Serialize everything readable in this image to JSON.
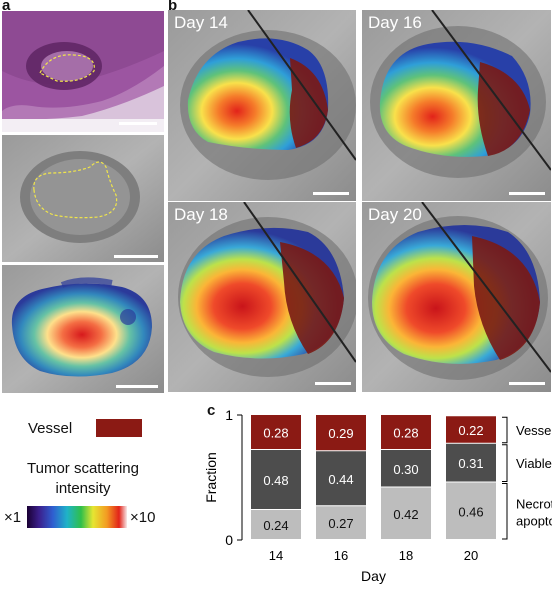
{
  "panels": {
    "a": "a",
    "b": "b",
    "c": "c"
  },
  "days": [
    "Day 14",
    "Day 16",
    "Day 18",
    "Day 20"
  ],
  "legend": {
    "vessel_label": "Vessel",
    "vessel_color": "#8b1a14",
    "scatter_title_line1": "Tumor scattering",
    "scatter_title_line2": "intensity",
    "cbar_min": "×1",
    "cbar_max": "×10"
  },
  "chart_data": {
    "type": "bar",
    "stacked": true,
    "categories": [
      "14",
      "16",
      "18",
      "20"
    ],
    "xlabel": "Day",
    "ylabel": "Fraction",
    "ylim": [
      0,
      1
    ],
    "yticks": [
      "0",
      "1"
    ],
    "series": [
      {
        "name": "Necrotic/ apoptotic",
        "values": [
          0.24,
          0.27,
          0.42,
          0.46
        ],
        "color": "#bdbdbd",
        "label_color": "#111111"
      },
      {
        "name": "Viable",
        "values": [
          0.48,
          0.44,
          0.3,
          0.31
        ],
        "color": "#4d4d4d",
        "label_color": "#ffffff"
      },
      {
        "name": "Vessels",
        "values": [
          0.28,
          0.29,
          0.28,
          0.22
        ],
        "color": "#8b1a14",
        "label_color": "#ffffff"
      }
    ],
    "value_labels": [
      [
        "0.24",
        "0.27",
        "0.42",
        "0.46"
      ],
      [
        "0.48",
        "0.44",
        "0.30",
        "0.31"
      ],
      [
        "0.28",
        "0.29",
        "0.28",
        "0.22"
      ]
    ],
    "bracket_labels": [
      "Vessels",
      "Viable",
      "Necrotic/",
      "apoptotic"
    ]
  }
}
